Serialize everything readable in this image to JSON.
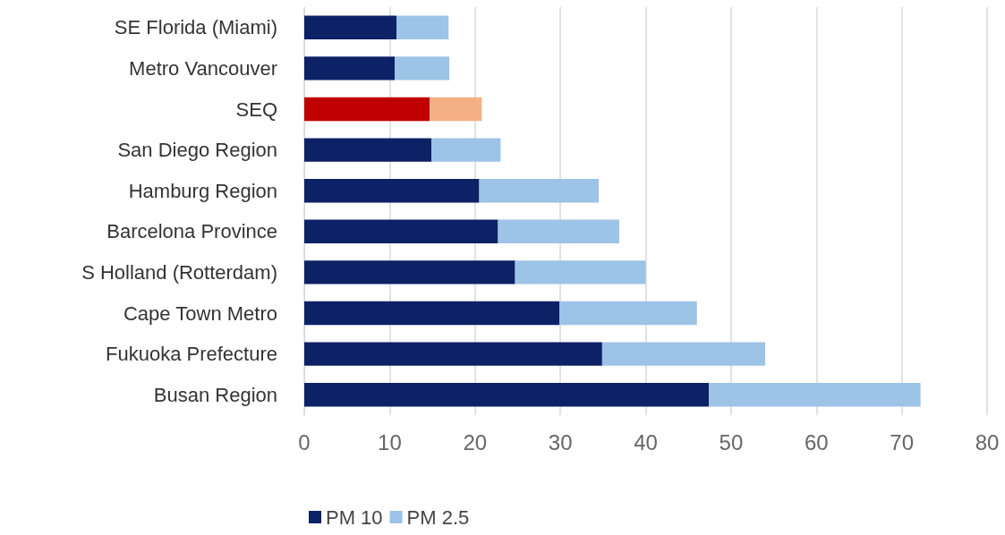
{
  "chart_data": {
    "type": "bar",
    "orientation": "horizontal",
    "stacked": true,
    "categories": [
      "SE Florida (Miami)",
      "Metro Vancouver",
      "SEQ",
      "San Diego Region",
      "Hamburg Region",
      "Barcelona Province",
      "S Holland (Rotterdam)",
      "Cape Town Metro",
      "Fukuoka Prefecture",
      "Busan Region"
    ],
    "series": [
      {
        "name": "PM 10",
        "color": "#0d2166",
        "colors": [
          "#0d2166",
          "#0d2166",
          "#c00000",
          "#0d2166",
          "#0d2166",
          "#0d2166",
          "#0d2166",
          "#0d2166",
          "#0d2166",
          "#0d2166"
        ],
        "values": [
          10.8,
          10.6,
          14.7,
          14.9,
          20.5,
          22.7,
          24.7,
          29.9,
          34.9,
          47.4
        ]
      },
      {
        "name": "PM 2.5",
        "color": "#9dc3e6",
        "colors": [
          "#9dc3e6",
          "#9dc3e6",
          "#f4b183",
          "#9dc3e6",
          "#9dc3e6",
          "#9dc3e6",
          "#9dc3e6",
          "#9dc3e6",
          "#9dc3e6",
          "#9dc3e6"
        ],
        "values": [
          6.1,
          6.4,
          6.1,
          8.1,
          14.0,
          14.2,
          15.3,
          16.1,
          19.1,
          24.8
        ]
      }
    ],
    "xlim": [
      0,
      80
    ],
    "xticks": [
      0,
      10,
      20,
      30,
      40,
      50,
      60,
      70,
      80
    ],
    "grid": "x",
    "legend": "bottom"
  }
}
